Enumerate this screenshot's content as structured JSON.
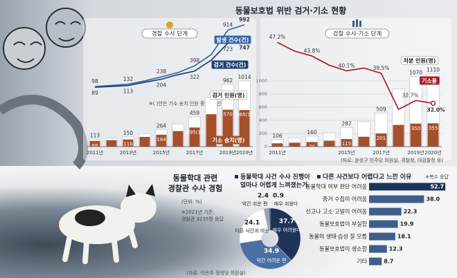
{
  "header": {
    "title": "동물보호법 위반 검거·기소 현황",
    "source": "(자료: 윤성구 민주당 의원실, 경찰청, 대검찰청 등)"
  },
  "survey": {
    "heading": [
      "동물학대 관련",
      "경찰관 수사 경험"
    ],
    "unit": "(단위: %)",
    "note": [
      "※2021년 기준,",
      "경찰관 3235명 응답"
    ],
    "source": "(자료: 이은주 정의당 의원실)"
  },
  "chart_data": [
    {
      "type": "combo",
      "subtitle": "경찰 수사 단계",
      "note": "※( )안은 기소 송치 인원 중 구속 인원",
      "categories": [
        "2011년",
        null,
        "2013년",
        null,
        "2015년",
        null,
        "2017년",
        null,
        "2019년",
        "2020년"
      ],
      "line_series": [
        {
          "name": "발생 건수(건)",
          "color": "#3566a8",
          "values": [
            98,
            115,
            132,
            180,
            238,
            300,
            398,
            560,
            914,
            992
          ],
          "value_labels": [
            "98",
            null,
            "132",
            null,
            "238",
            null,
            "398",
            null,
            "914",
            "992"
          ]
        },
        {
          "name": "검거 건수(건)",
          "color": "#1f3f73",
          "values": [
            89,
            100,
            113,
            160,
            204,
            270,
            322,
            480,
            723,
            747
          ],
          "value_labels": [
            "89",
            null,
            "113",
            null,
            "204",
            null,
            "322",
            null,
            "723",
            "747"
          ]
        }
      ],
      "bar_series": [
        {
          "name": "검거 인원(명)",
          "color": "#ffffff",
          "values": [
            113,
            130,
            150,
            200,
            264,
            350,
            459,
            760,
            962,
            1014
          ],
          "value_labels": [
            "113",
            null,
            "150",
            null,
            "264",
            null,
            "459",
            null,
            "962",
            "1014"
          ]
        },
        {
          "name": "기소 송치(명)",
          "color": "#a5502a",
          "values": [
            88,
            100,
            110,
            150,
            184,
            240,
            295,
            500,
            570,
            565
          ],
          "value_labels": [
            "88",
            null,
            "110",
            null,
            "184",
            null,
            "295(1)",
            null,
            "570",
            "565(1)"
          ]
        }
      ],
      "ylim": [
        0,
        1000
      ],
      "y2lim": [
        0,
        1100
      ]
    },
    {
      "type": "combo",
      "subtitle": "검찰 수사·기소 단계",
      "categories": [
        "2011년",
        null,
        null,
        null,
        "2015년",
        null,
        "2017년",
        null,
        "2019년",
        "2020년"
      ],
      "line_series": [
        {
          "name": "기소율",
          "color": "#a61c2b",
          "values": [
            47.2,
            45.0,
            43.8,
            41.5,
            40.1,
            40.8,
            39.5,
            30.5,
            32.7,
            32.0
          ],
          "value_labels": [
            "47.2%",
            null,
            "43.8%",
            null,
            "40.1%",
            null,
            "39.5%",
            null,
            "32.7%",
            "32.0%"
          ]
        }
      ],
      "bar_series": [
        {
          "name": "처분 인원(명)",
          "color": "#ffffff",
          "values": [
            106,
            130,
            160,
            210,
            287,
            380,
            509,
            880,
            1070,
            1110
          ],
          "value_labels": [
            "106",
            null,
            "160",
            null,
            "287",
            null,
            "509",
            null,
            "1070",
            "1110"
          ]
        },
        {
          "color": "#a5502a",
          "values": [
            50,
            60,
            70,
            90,
            115,
            150,
            201,
            330,
            350,
            355
          ],
          "value_labels": [
            "50",
            null,
            "70",
            null,
            "115",
            null,
            "201",
            null,
            "350",
            "355"
          ]
        }
      ],
      "ylim": [
        25,
        50
      ],
      "y2lim": [
        0,
        1200
      ],
      "y2ticks": [
        0,
        200,
        400,
        600,
        800,
        1000
      ]
    },
    {
      "type": "donut",
      "title": [
        "동물학대 사건 수사 진행이",
        "얼마나 어렵게 느껴졌는가"
      ],
      "categories": [
        "매우 어려웠다",
        "약간 어려운 편",
        "다른 사건과 비슷",
        "약간 쉬운 편",
        "매우 쉬웠다"
      ],
      "values": [
        37.7,
        34.9,
        24.1,
        2.4,
        0.9
      ],
      "colors": [
        "#1e3358",
        "#4a6fa5",
        "#ffffff",
        "#9aa3ad",
        "#5a6370"
      ]
    },
    {
      "type": "hbar",
      "title": "다른 사건보다 어렵다고 느낀 이유",
      "note": "※복수 응답",
      "categories": [
        "동물학대 여부 판단 어려움",
        "증거 수집이 어려움",
        "신고나 고소·고발이 어려움",
        "동물보호법이 부실함",
        "동물의 생태·습성 잘 모름",
        "동물보호법이 생소함",
        "기타"
      ],
      "values": [
        52.7,
        38.0,
        22.3,
        19.9,
        18.1,
        12.3,
        8.7
      ],
      "value_labels": [
        "52.7",
        "38.0",
        "22.3",
        "19.9",
        "18.1",
        "12.3",
        "8.7"
      ],
      "colors": [
        "#1e3358",
        "#3f5f8a",
        "#3f5f8a",
        "#3f5f8a",
        "#3f5f8a",
        "#3f5f8a",
        "#3f5f8a"
      ],
      "xlim": [
        0,
        55
      ]
    }
  ]
}
